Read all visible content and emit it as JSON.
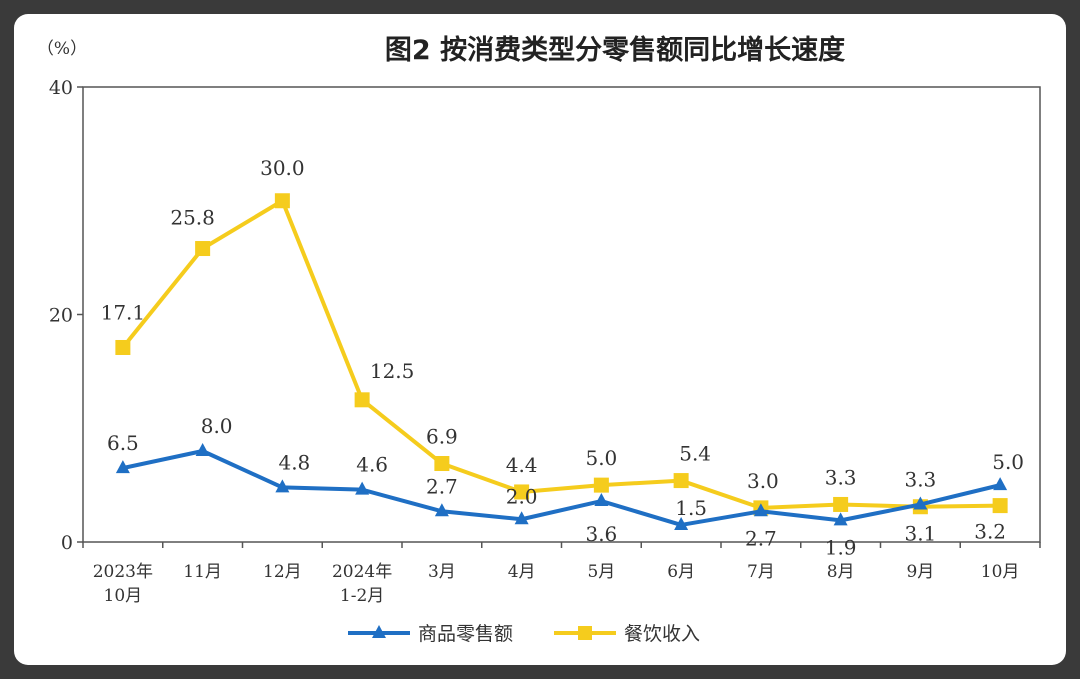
{
  "chart_data": {
    "type": "line",
    "title": "图2 按消费类型分零售额同比增长速度",
    "unit": "（%）",
    "ylim": [
      0,
      40
    ],
    "yticks": [
      "0",
      "20",
      "40"
    ],
    "categories": [
      [
        "2023年",
        "10月"
      ],
      [
        "11月"
      ],
      [
        "12月"
      ],
      [
        "2024年",
        "1-2月"
      ],
      [
        "3月"
      ],
      [
        "4月"
      ],
      [
        "5月"
      ],
      [
        "6月"
      ],
      [
        "7月"
      ],
      [
        "8月"
      ],
      [
        "9月"
      ],
      [
        "10月"
      ]
    ],
    "series": [
      {
        "name": "商品零售额",
        "color": "#1f6fc4",
        "marker": "triangle",
        "values": [
          6.5,
          8.0,
          4.8,
          4.6,
          2.7,
          2.0,
          3.6,
          1.5,
          2.7,
          1.9,
          3.3,
          5.0
        ],
        "labels": [
          "6.5",
          "8.0",
          "4.8",
          "4.6",
          "2.7",
          "2.0",
          "3.6",
          "1.5",
          "2.7",
          "1.9",
          "3.3",
          "5.0"
        ]
      },
      {
        "name": "餐饮收入",
        "color": "#f5cc1d",
        "marker": "square",
        "values": [
          17.1,
          25.8,
          30.0,
          12.5,
          6.9,
          4.4,
          5.0,
          5.4,
          3.0,
          3.3,
          3.1,
          3.2
        ],
        "labels": [
          "17.1",
          "25.8",
          "30.0",
          "12.5",
          "6.9",
          "4.4",
          "5.0",
          "5.4",
          "3.0",
          "3.3",
          "3.1",
          "3.2"
        ]
      }
    ],
    "legend": "bottom",
    "grid": false
  }
}
